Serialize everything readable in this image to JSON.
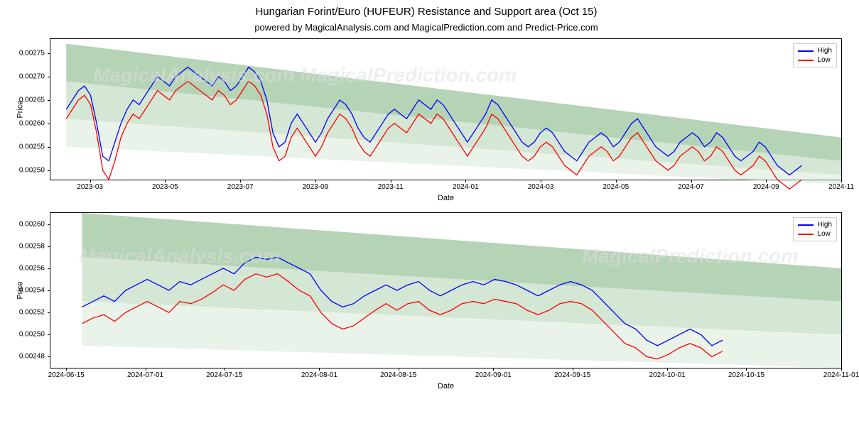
{
  "title": "Hungarian Forint/Euro (HUFEUR) Resistance and Support area (Oct 15)",
  "subtitle": "powered by MagicalAnalysis.com and MagicalPrediction.com and Predict-Price.com",
  "watermark_top": "MagicalAnalysis.com  MagicalPrediction.com",
  "watermark_bottom_left": "MagicalAnalysis.com",
  "watermark_bottom_right": "MagicalPrediction.com",
  "colors": {
    "high_line": "#0000ff",
    "low_line": "#ff0000",
    "band_dark": "#9cc49c",
    "band_mid": "#b8d6b8",
    "band_light": "#d4e8d4",
    "plot_border": "#000000",
    "background": "#ffffff",
    "text": "#000000",
    "watermark": "#e0e0e0",
    "legend_border": "#cccccc"
  },
  "legend": {
    "high": "High",
    "low": "Low"
  },
  "chart1": {
    "type": "line",
    "ylabel": "Price",
    "xlabel": "Date",
    "ylim": [
      0.00248,
      0.00278
    ],
    "yticks": [
      0.0025,
      0.00255,
      0.0026,
      0.00265,
      0.0027,
      0.00275
    ],
    "ytick_labels": [
      "0.00250",
      "0.00255",
      "0.00260",
      "0.00265",
      "0.00270",
      "0.00275"
    ],
    "xticks_pct": [
      5,
      14.5,
      24,
      33.5,
      43,
      52.5,
      62,
      71.5,
      81,
      90.5,
      100
    ],
    "xtick_labels": [
      "2023-03",
      "2023-05",
      "2023-07",
      "2023-09",
      "2023-11",
      "2024-01",
      "2024-03",
      "2024-05",
      "2024-07",
      "2024-09",
      "2024-11"
    ],
    "data_xstart_pct": 2,
    "data_xend_pct": 95,
    "bands": [
      {
        "y0_start": 0.00277,
        "y1_start": 0.00269,
        "y0_end": 0.00257,
        "y1_end": 0.00252,
        "color": "#9cc49c",
        "opacity": 0.75
      },
      {
        "y0_start": 0.00269,
        "y1_start": 0.00261,
        "y0_end": 0.00252,
        "y1_end": 0.00249,
        "color": "#b8d6b8",
        "opacity": 0.6
      },
      {
        "y0_start": 0.00261,
        "y1_start": 0.00255,
        "y0_end": 0.00249,
        "y1_end": 0.00247,
        "color": "#d4e8d4",
        "opacity": 0.5
      }
    ],
    "series_high": [
      0.00263,
      0.00265,
      0.00267,
      0.00268,
      0.00266,
      0.0026,
      0.00253,
      0.00252,
      0.00256,
      0.0026,
      0.00263,
      0.00265,
      0.00264,
      0.00266,
      0.00268,
      0.0027,
      0.00269,
      0.00268,
      0.0027,
      0.00271,
      0.00272,
      0.00271,
      0.0027,
      0.00269,
      0.00268,
      0.0027,
      0.00269,
      0.00267,
      0.00268,
      0.0027,
      0.00272,
      0.00271,
      0.00269,
      0.00265,
      0.00258,
      0.00255,
      0.00256,
      0.0026,
      0.00262,
      0.0026,
      0.00258,
      0.00256,
      0.00258,
      0.00261,
      0.00263,
      0.00265,
      0.00264,
      0.00262,
      0.00259,
      0.00257,
      0.00256,
      0.00258,
      0.0026,
      0.00262,
      0.00263,
      0.00262,
      0.00261,
      0.00263,
      0.00265,
      0.00264,
      0.00263,
      0.00265,
      0.00264,
      0.00262,
      0.0026,
      0.00258,
      0.00256,
      0.00258,
      0.0026,
      0.00262,
      0.00265,
      0.00264,
      0.00262,
      0.0026,
      0.00258,
      0.00256,
      0.00255,
      0.00256,
      0.00258,
      0.00259,
      0.00258,
      0.00256,
      0.00254,
      0.00253,
      0.00252,
      0.00254,
      0.00256,
      0.00257,
      0.00258,
      0.00257,
      0.00255,
      0.00256,
      0.00258,
      0.0026,
      0.00261,
      0.00259,
      0.00257,
      0.00255,
      0.00254,
      0.00253,
      0.00254,
      0.00256,
      0.00257,
      0.00258,
      0.00257,
      0.00255,
      0.00256,
      0.00258,
      0.00257,
      0.00255,
      0.00253,
      0.00252,
      0.00253,
      0.00254,
      0.00256,
      0.00255,
      0.00253,
      0.00251,
      0.0025,
      0.00249,
      0.0025,
      0.00251
    ],
    "series_low": [
      0.00261,
      0.00263,
      0.00265,
      0.00266,
      0.00264,
      0.00258,
      0.0025,
      0.00248,
      0.00252,
      0.00257,
      0.0026,
      0.00262,
      0.00261,
      0.00263,
      0.00265,
      0.00267,
      0.00266,
      0.00265,
      0.00267,
      0.00268,
      0.00269,
      0.00268,
      0.00267,
      0.00266,
      0.00265,
      0.00267,
      0.00266,
      0.00264,
      0.00265,
      0.00267,
      0.00269,
      0.00268,
      0.00266,
      0.00262,
      0.00255,
      0.00252,
      0.00253,
      0.00257,
      0.00259,
      0.00257,
      0.00255,
      0.00253,
      0.00255,
      0.00258,
      0.0026,
      0.00262,
      0.00261,
      0.00259,
      0.00256,
      0.00254,
      0.00253,
      0.00255,
      0.00257,
      0.00259,
      0.0026,
      0.00259,
      0.00258,
      0.0026,
      0.00262,
      0.00261,
      0.0026,
      0.00262,
      0.00261,
      0.00259,
      0.00257,
      0.00255,
      0.00253,
      0.00255,
      0.00257,
      0.00259,
      0.00262,
      0.00261,
      0.00259,
      0.00257,
      0.00255,
      0.00253,
      0.00252,
      0.00253,
      0.00255,
      0.00256,
      0.00255,
      0.00253,
      0.00251,
      0.0025,
      0.00249,
      0.00251,
      0.00253,
      0.00254,
      0.00255,
      0.00254,
      0.00252,
      0.00253,
      0.00255,
      0.00257,
      0.00258,
      0.00256,
      0.00254,
      0.00252,
      0.00251,
      0.0025,
      0.00251,
      0.00253,
      0.00254,
      0.00255,
      0.00254,
      0.00252,
      0.00253,
      0.00255,
      0.00254,
      0.00252,
      0.0025,
      0.00249,
      0.0025,
      0.00251,
      0.00253,
      0.00252,
      0.0025,
      0.00248,
      0.00247,
      0.00246,
      0.00247,
      0.00248
    ]
  },
  "chart2": {
    "type": "line",
    "ylabel": "Price",
    "xlabel": "Date",
    "ylim": [
      0.00247,
      0.00261
    ],
    "yticks": [
      0.00248,
      0.0025,
      0.00252,
      0.00254,
      0.00256,
      0.00258,
      0.0026
    ],
    "ytick_labels": [
      "0.00248",
      "0.00250",
      "0.00252",
      "0.00254",
      "0.00256",
      "0.00258",
      "0.00260"
    ],
    "xticks_pct": [
      2,
      12,
      22,
      34,
      44,
      56,
      66,
      78,
      88,
      100
    ],
    "xtick_labels": [
      "2024-06-15",
      "2024-07-01",
      "2024-07-15",
      "2024-08-01",
      "2024-08-15",
      "2024-09-01",
      "2024-09-15",
      "2024-10-01",
      "2024-10-15",
      "2024-11-01"
    ],
    "data_xstart_pct": 4,
    "data_xend_pct": 85,
    "bands": [
      {
        "y0_start": 0.00261,
        "y1_start": 0.00257,
        "y0_end": 0.00256,
        "y1_end": 0.00253,
        "color": "#9cc49c",
        "opacity": 0.75
      },
      {
        "y0_start": 0.00257,
        "y1_start": 0.00253,
        "y0_end": 0.00253,
        "y1_end": 0.0025,
        "color": "#b8d6b8",
        "opacity": 0.6
      },
      {
        "y0_start": 0.00253,
        "y1_start": 0.00249,
        "y0_end": 0.0025,
        "y1_end": 0.00247,
        "color": "#d4e8d4",
        "opacity": 0.5
      }
    ],
    "series_high": [
      0.002525,
      0.00253,
      0.002535,
      0.00253,
      0.00254,
      0.002545,
      0.00255,
      0.002545,
      0.00254,
      0.002548,
      0.002545,
      0.00255,
      0.002555,
      0.00256,
      0.002555,
      0.002565,
      0.00257,
      0.002568,
      0.00257,
      0.002565,
      0.00256,
      0.002555,
      0.00254,
      0.00253,
      0.002525,
      0.002528,
      0.002535,
      0.00254,
      0.002545,
      0.00254,
      0.002545,
      0.002548,
      0.00254,
      0.002535,
      0.00254,
      0.002545,
      0.002548,
      0.002545,
      0.00255,
      0.002548,
      0.002545,
      0.00254,
      0.002535,
      0.00254,
      0.002545,
      0.002548,
      0.002545,
      0.00254,
      0.00253,
      0.00252,
      0.00251,
      0.002505,
      0.002495,
      0.00249,
      0.002495,
      0.0025,
      0.002505,
      0.0025,
      0.00249,
      0.002495
    ],
    "series_low": [
      0.00251,
      0.002515,
      0.002518,
      0.002512,
      0.00252,
      0.002525,
      0.00253,
      0.002525,
      0.00252,
      0.00253,
      0.002528,
      0.002532,
      0.002538,
      0.002545,
      0.00254,
      0.00255,
      0.002555,
      0.002552,
      0.002555,
      0.002548,
      0.00254,
      0.002535,
      0.00252,
      0.00251,
      0.002505,
      0.002508,
      0.002515,
      0.002522,
      0.002528,
      0.002522,
      0.002528,
      0.00253,
      0.002522,
      0.002518,
      0.002522,
      0.002528,
      0.00253,
      0.002528,
      0.002532,
      0.00253,
      0.002528,
      0.002522,
      0.002518,
      0.002522,
      0.002528,
      0.00253,
      0.002528,
      0.002522,
      0.002512,
      0.002502,
      0.002492,
      0.002488,
      0.00248,
      0.002478,
      0.002482,
      0.002488,
      0.002492,
      0.002488,
      0.00248,
      0.002485
    ]
  }
}
